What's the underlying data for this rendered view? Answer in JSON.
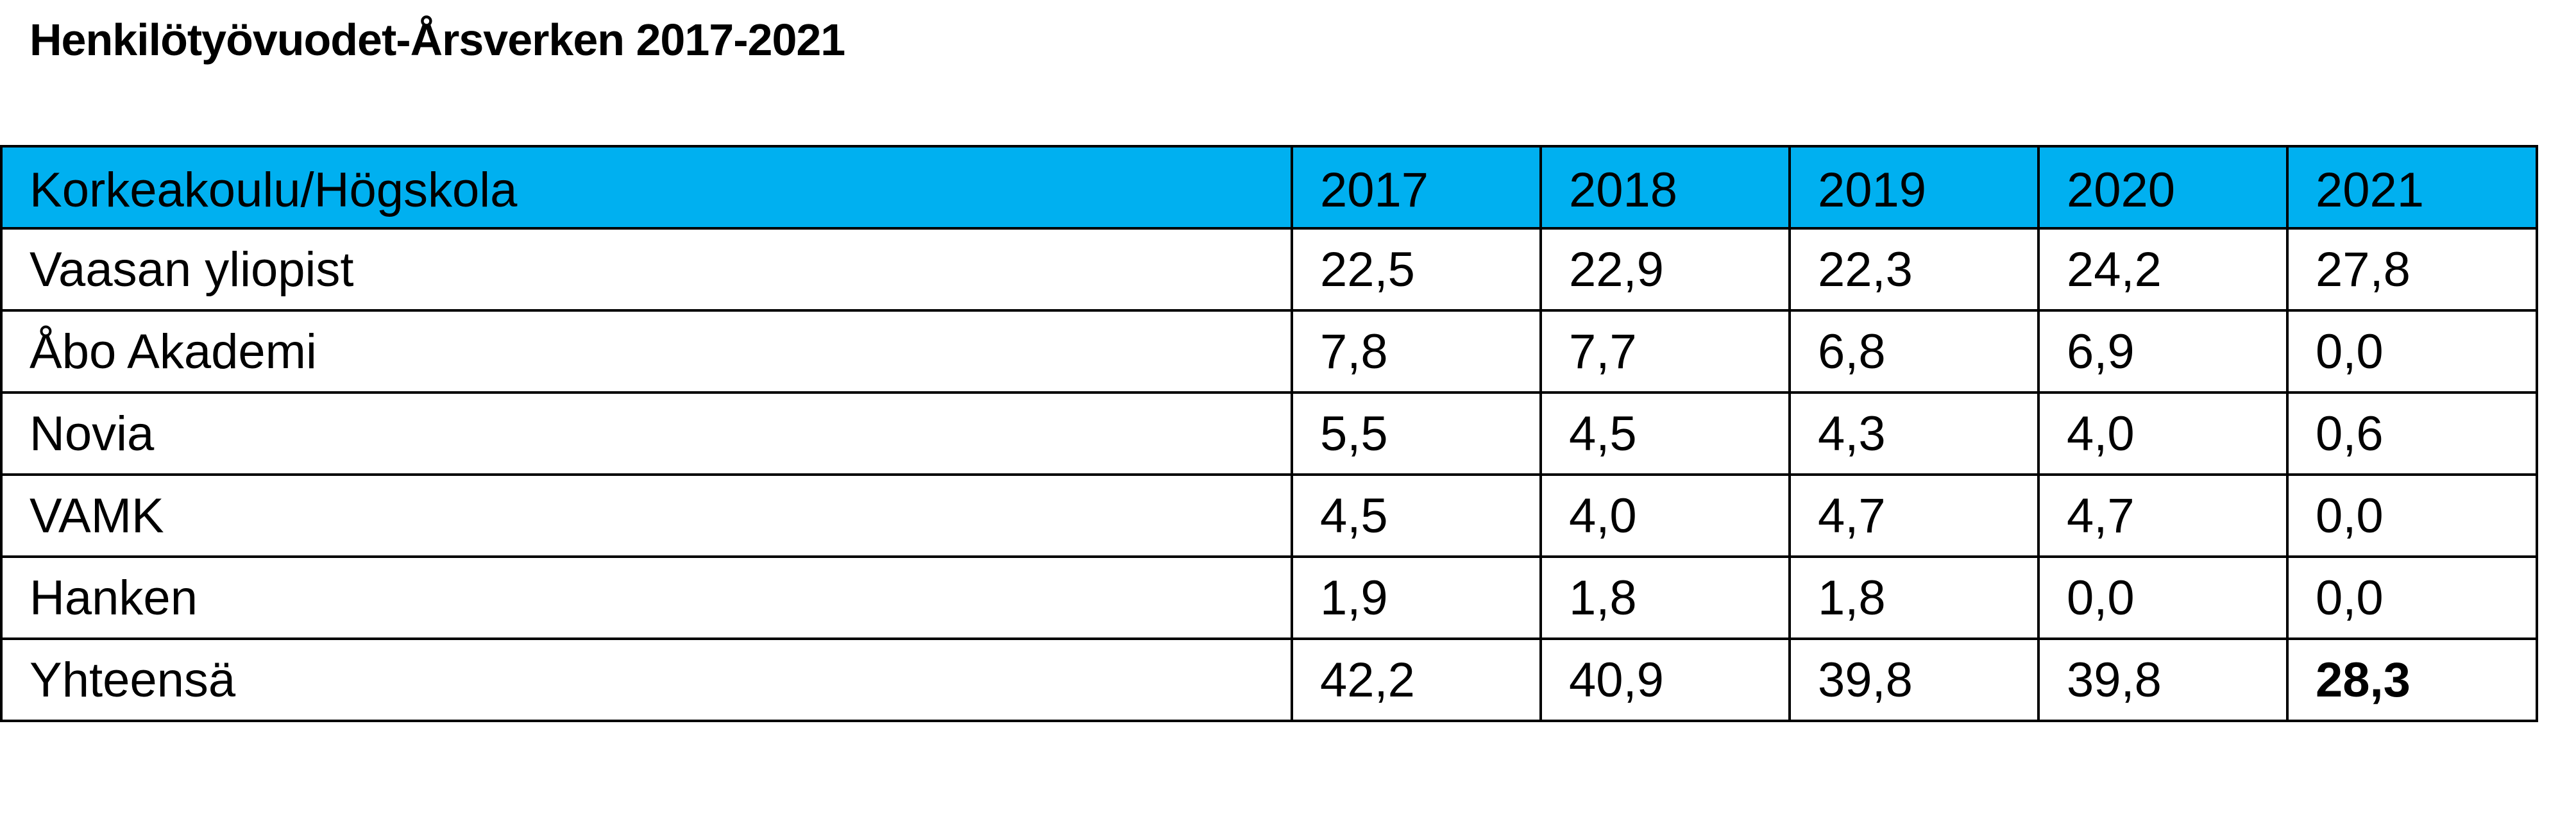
{
  "title": "Henkilötyövuodet-Årsverken 2017-2021",
  "table": {
    "header_color": "#00b0f0",
    "columns": [
      "Korkeakoulu/Högskola",
      "2017",
      "2018",
      "2019",
      "2020",
      "2021"
    ],
    "rows": [
      {
        "name": "Vaasan yliopist",
        "values": [
          "22,5",
          "22,9",
          "22,3",
          "24,2",
          "27,8"
        ]
      },
      {
        "name": "Åbo Akademi",
        "values": [
          "7,8",
          "7,7",
          "6,8",
          "6,9",
          "0,0"
        ]
      },
      {
        "name": "Novia",
        "values": [
          "5,5",
          "4,5",
          "4,3",
          "4,0",
          "0,6"
        ]
      },
      {
        "name": "VAMK",
        "values": [
          "4,5",
          "4,0",
          "4,7",
          "4,7",
          "0,0"
        ]
      },
      {
        "name": "Hanken",
        "values": [
          "1,9",
          "1,8",
          "1,8",
          "0,0",
          "0,0"
        ]
      },
      {
        "name": "Yhteensä",
        "values": [
          "42,2",
          "40,9",
          "39,8",
          "39,8",
          "28,3"
        ]
      }
    ]
  }
}
